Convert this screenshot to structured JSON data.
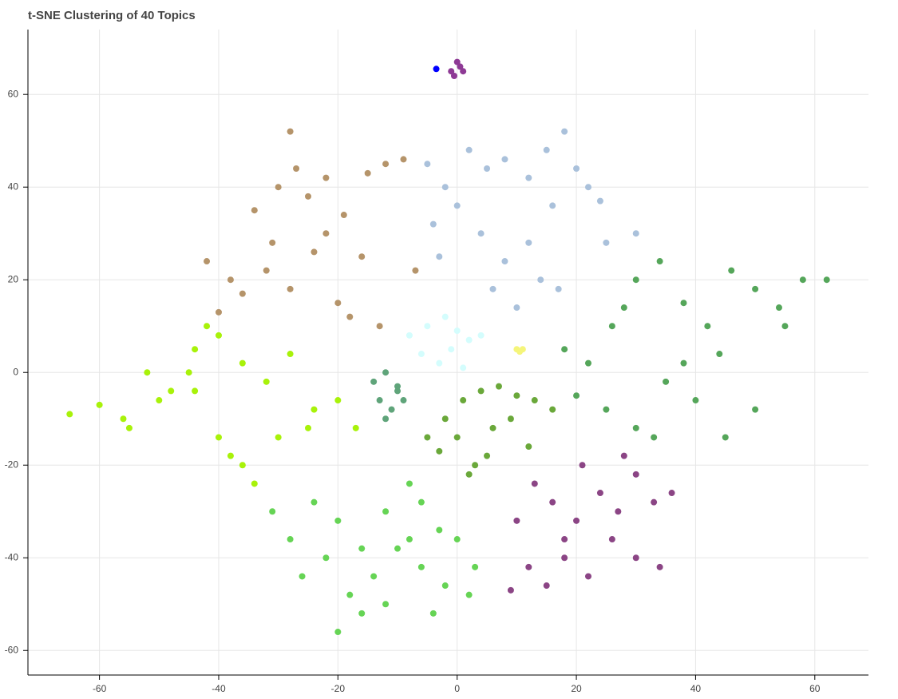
{
  "chart_data": {
    "type": "scatter",
    "title": "t-SNE Clustering of 40 Topics",
    "xlim": [
      -72,
      69
    ],
    "ylim": [
      -65.3,
      74
    ],
    "xticks": [
      -60,
      -40,
      -20,
      0,
      20,
      40,
      60
    ],
    "yticks": [
      -60,
      -40,
      -20,
      0,
      20,
      40,
      60
    ],
    "grid": true,
    "series": [
      {
        "color": "#b5946a",
        "x": [
          -42,
          -38,
          -34,
          -31,
          -28,
          -27,
          -25,
          -22,
          -19,
          -15,
          -12,
          -9,
          -7,
          -40,
          -36,
          -32,
          -28,
          -24,
          -20,
          -16,
          -13,
          -30,
          -22,
          -18
        ],
        "y": [
          24,
          20,
          35,
          28,
          52,
          44,
          38,
          42,
          34,
          43,
          45,
          46,
          22,
          13,
          17,
          22,
          18,
          26,
          15,
          25,
          10,
          40,
          30,
          12
        ]
      },
      {
        "color": "#aac1db",
        "x": [
          -5,
          -2,
          2,
          5,
          8,
          12,
          15,
          18,
          20,
          -4,
          0,
          4,
          8,
          12,
          16,
          22,
          25,
          30,
          6,
          10,
          14,
          17,
          24,
          -3
        ],
        "y": [
          45,
          40,
          48,
          44,
          46,
          42,
          48,
          52,
          44,
          32,
          36,
          30,
          24,
          28,
          36,
          40,
          28,
          30,
          18,
          14,
          20,
          18,
          37,
          25
        ]
      },
      {
        "color": "#55a65a",
        "x": [
          18,
          22,
          26,
          30,
          34,
          38,
          42,
          46,
          50,
          54,
          58,
          62,
          20,
          25,
          30,
          35,
          40,
          45,
          50,
          28,
          33,
          38,
          44,
          55
        ],
        "y": [
          5,
          2,
          10,
          20,
          24,
          15,
          10,
          22,
          18,
          14,
          20,
          20,
          -5,
          -8,
          -12,
          -2,
          -6,
          -14,
          -8,
          14,
          -14,
          2,
          4,
          10
        ]
      },
      {
        "color": "#8b4585",
        "x": [
          10,
          13,
          16,
          18,
          21,
          24,
          27,
          30,
          33,
          36,
          12,
          15,
          18,
          22,
          26,
          30,
          34,
          9,
          20,
          28
        ],
        "y": [
          -32,
          -24,
          -28,
          -36,
          -20,
          -26,
          -30,
          -22,
          -28,
          -26,
          -42,
          -46,
          -40,
          -44,
          -36,
          -40,
          -42,
          -47,
          -32,
          -18
        ]
      },
      {
        "color": "#66d455",
        "x": [
          -31,
          -28,
          -24,
          -20,
          -16,
          -12,
          -8,
          -6,
          -3,
          0,
          3,
          -26,
          -22,
          -18,
          -14,
          -10,
          -6,
          -2,
          2,
          -20,
          -16,
          -12,
          -8,
          -4
        ],
        "y": [
          -30,
          -36,
          -28,
          -32,
          -38,
          -30,
          -24,
          -28,
          -34,
          -36,
          -42,
          -44,
          -40,
          -48,
          -44,
          -38,
          -42,
          -46,
          -48,
          -56,
          -52,
          -50,
          -36,
          -52
        ]
      },
      {
        "color": "#6aa83a",
        "x": [
          -5,
          -2,
          1,
          4,
          7,
          10,
          13,
          16,
          -3,
          0,
          3,
          6,
          9,
          12,
          2,
          5
        ],
        "y": [
          -14,
          -10,
          -6,
          -4,
          -3,
          -5,
          -6,
          -8,
          -17,
          -14,
          -20,
          -12,
          -10,
          -16,
          -22,
          -18
        ]
      },
      {
        "color": "#a8f20a",
        "x": [
          -65,
          -60,
          -56,
          -52,
          -48,
          -44,
          -40,
          -36,
          -32,
          -28,
          -24,
          -20,
          -17,
          -55,
          -50,
          -45,
          -40,
          -36,
          -30,
          -25,
          -42,
          -38,
          -34,
          -44
        ],
        "y": [
          -9,
          -7,
          -10,
          0,
          -4,
          5,
          8,
          2,
          -2,
          4,
          -8,
          -6,
          -12,
          -12,
          -6,
          0,
          -14,
          -20,
          -14,
          -12,
          10,
          -18,
          -24,
          -4
        ]
      },
      {
        "color": "#d4fdfd",
        "x": [
          -8,
          -5,
          -2,
          0,
          2,
          4,
          -6,
          -3,
          1,
          -1
        ],
        "y": [
          8,
          10,
          12,
          9,
          7,
          8,
          4,
          2,
          1,
          5
        ]
      },
      {
        "color": "#5fa47a",
        "x": [
          -14,
          -12,
          -10,
          -13,
          -11,
          -9,
          -12,
          -10
        ],
        "y": [
          -2,
          0,
          -4,
          -6,
          -8,
          -6,
          -10,
          -3
        ]
      },
      {
        "color": "#8e3a95",
        "x": [
          -1,
          0,
          1,
          -0.5,
          0.5
        ],
        "y": [
          65,
          67,
          65,
          64,
          66
        ]
      },
      {
        "color": "#0000ff",
        "x": [
          -3.5
        ],
        "y": [
          65.5
        ]
      },
      {
        "color": "#f5f57a",
        "x": [
          10,
          11,
          10.5
        ],
        "y": [
          5,
          5,
          4.5
        ]
      }
    ]
  }
}
